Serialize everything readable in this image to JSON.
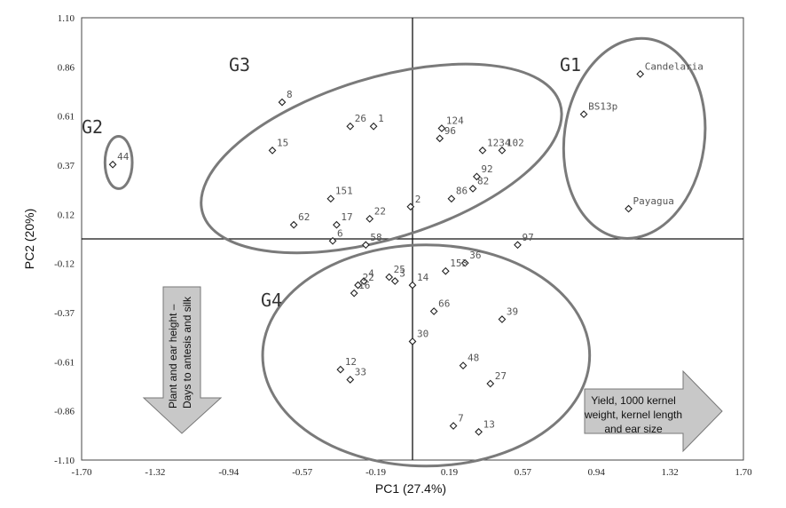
{
  "chart_data": {
    "type": "scatter",
    "xlabel": "PC1 (27.4%)",
    "ylabel": "PC2 (20%)",
    "xlim": [
      -1.7,
      1.7
    ],
    "ylim": [
      -1.1,
      1.1
    ],
    "x_ticks": [
      "-1.70",
      "-1.32",
      "-0.94",
      "-0.57",
      "-0.19",
      "0.19",
      "0.57",
      "0.94",
      "1.32",
      "1.70"
    ],
    "y_ticks": [
      "1.10",
      "0.86",
      "0.61",
      "0.37",
      "0.12",
      "-0.12",
      "-0.37",
      "-0.61",
      "-0.86",
      "-1.10"
    ],
    "points": [
      {
        "label": "Candelaria",
        "x": 1.17,
        "y": 0.82
      },
      {
        "label": "BS13p",
        "x": 0.88,
        "y": 0.62
      },
      {
        "label": "Payagua",
        "x": 1.11,
        "y": 0.15
      },
      {
        "label": "44",
        "x": -1.54,
        "y": 0.37
      },
      {
        "label": "8",
        "x": -0.67,
        "y": 0.68
      },
      {
        "label": "26",
        "x": -0.32,
        "y": 0.56
      },
      {
        "label": "1",
        "x": -0.2,
        "y": 0.56
      },
      {
        "label": "15",
        "x": -0.72,
        "y": 0.44
      },
      {
        "label": "124",
        "x": 0.15,
        "y": 0.55
      },
      {
        "label": "96",
        "x": 0.14,
        "y": 0.5
      },
      {
        "label": "1234",
        "x": 0.36,
        "y": 0.44
      },
      {
        "label": "102",
        "x": 0.46,
        "y": 0.44
      },
      {
        "label": "92",
        "x": 0.33,
        "y": 0.31
      },
      {
        "label": "82",
        "x": 0.31,
        "y": 0.25
      },
      {
        "label": "86",
        "x": 0.2,
        "y": 0.2
      },
      {
        "label": "2",
        "x": -0.01,
        "y": 0.16
      },
      {
        "label": "151",
        "x": -0.42,
        "y": 0.2
      },
      {
        "label": "17",
        "x": -0.39,
        "y": 0.07
      },
      {
        "label": "22",
        "x": -0.22,
        "y": 0.1
      },
      {
        "label": "62",
        "x": -0.61,
        "y": 0.07
      },
      {
        "label": "6",
        "x": -0.41,
        "y": -0.01
      },
      {
        "label": "58",
        "x": -0.24,
        "y": -0.03
      },
      {
        "label": "97",
        "x": 0.54,
        "y": -0.03
      },
      {
        "label": "36",
        "x": 0.27,
        "y": -0.12
      },
      {
        "label": "153",
        "x": 0.17,
        "y": -0.16
      },
      {
        "label": "25",
        "x": -0.12,
        "y": -0.19
      },
      {
        "label": "3",
        "x": -0.09,
        "y": -0.21
      },
      {
        "label": "14",
        "x": 0.0,
        "y": -0.23
      },
      {
        "label": "4",
        "x": -0.25,
        "y": -0.21
      },
      {
        "label": "22",
        "x": -0.28,
        "y": -0.23
      },
      {
        "label": "16",
        "x": -0.3,
        "y": -0.27
      },
      {
        "label": "66",
        "x": 0.11,
        "y": -0.36
      },
      {
        "label": "39",
        "x": 0.46,
        "y": -0.4
      },
      {
        "label": "30",
        "x": 0.0,
        "y": -0.51
      },
      {
        "label": "48",
        "x": 0.26,
        "y": -0.63
      },
      {
        "label": "12",
        "x": -0.37,
        "y": -0.65
      },
      {
        "label": "33",
        "x": -0.32,
        "y": -0.7
      },
      {
        "label": "27",
        "x": 0.4,
        "y": -0.72
      },
      {
        "label": "7",
        "x": 0.21,
        "y": -0.93
      },
      {
        "label": "13",
        "x": 0.34,
        "y": -0.96
      }
    ],
    "groups": [
      {
        "name": "G1",
        "cx": 1.14,
        "cy": 0.5,
        "rx": 0.36,
        "ry": 0.5,
        "rotate": 8
      },
      {
        "name": "G2",
        "cx": -1.51,
        "cy": 0.38,
        "rx": 0.07,
        "ry": 0.13,
        "rotate": 0
      },
      {
        "name": "G3",
        "cx": -0.16,
        "cy": 0.4,
        "rx": 0.96,
        "ry": 0.4,
        "rotate": -17
      },
      {
        "name": "G4",
        "cx": 0.07,
        "cy": -0.58,
        "rx": 0.84,
        "ry": 0.55,
        "rotate": 0
      }
    ],
    "annotations": {
      "down_arrow": [
        "Plant and ear height –",
        "Days to antesis and silk"
      ],
      "right_arrow": [
        "Yield, 1000 kernel",
        "weight, kernel length",
        "and ear size"
      ]
    }
  }
}
